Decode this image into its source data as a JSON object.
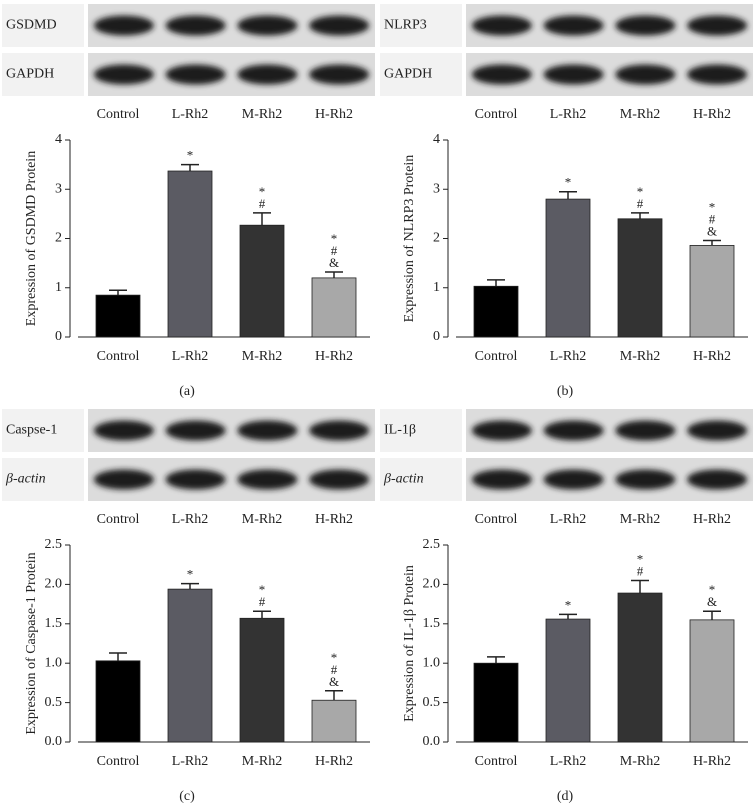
{
  "chart_data": [
    {
      "type": "bar",
      "panel": "(a)",
      "blot_labels": [
        "GSDMD",
        "GAPDH"
      ],
      "ylabel": "Expression of GSDMD Protein",
      "categories": [
        "Control",
        "L-Rh2",
        "M-Rh2",
        "H-Rh2"
      ],
      "values": [
        0.85,
        3.37,
        2.27,
        1.2
      ],
      "errors": [
        0.1,
        0.13,
        0.25,
        0.12
      ],
      "marks": [
        [],
        [
          "*"
        ],
        [
          "*",
          "#"
        ],
        [
          "*",
          "#",
          "&"
        ]
      ],
      "colors": [
        "#000000",
        "#5b5b63",
        "#333333",
        "#a8a8a8"
      ],
      "ylim": [
        0,
        4
      ],
      "yticks": [
        0,
        1,
        2,
        3,
        4
      ]
    },
    {
      "type": "bar",
      "panel": "(b)",
      "blot_labels": [
        "NLRP3",
        "GAPDH"
      ],
      "ylabel": "Expression of NLRP3 Protein",
      "categories": [
        "Control",
        "L-Rh2",
        "M-Rh2",
        "H-Rh2"
      ],
      "values": [
        1.03,
        2.8,
        2.4,
        1.86
      ],
      "errors": [
        0.13,
        0.15,
        0.12,
        0.1
      ],
      "marks": [
        [],
        [
          "*"
        ],
        [
          "*",
          "#"
        ],
        [
          "*",
          "#",
          "&"
        ]
      ],
      "colors": [
        "#000000",
        "#5b5b63",
        "#333333",
        "#a8a8a8"
      ],
      "ylim": [
        0,
        4
      ],
      "yticks": [
        0,
        1,
        2,
        3,
        4
      ]
    },
    {
      "type": "bar",
      "panel": "(c)",
      "blot_labels": [
        "Caspse-1",
        "β-actin"
      ],
      "ylabel": "Expression of Caspase-1 Protein",
      "categories": [
        "Control",
        "L-Rh2",
        "M-Rh2",
        "H-Rh2"
      ],
      "values": [
        1.03,
        1.94,
        1.57,
        0.53
      ],
      "errors": [
        0.1,
        0.07,
        0.09,
        0.12
      ],
      "marks": [
        [],
        [
          "*"
        ],
        [
          "*",
          "#"
        ],
        [
          "*",
          "#",
          "&"
        ]
      ],
      "colors": [
        "#000000",
        "#5b5b63",
        "#333333",
        "#a8a8a8"
      ],
      "ylim": [
        0,
        2.5
      ],
      "yticks": [
        {
          "value": 0,
          "label": "0.0"
        },
        {
          "value": 0.5,
          "label": "0.5"
        },
        {
          "value": 1,
          "label": "1.0"
        },
        {
          "value": 1.5,
          "label": "1.5"
        },
        {
          "value": 2,
          "label": "2.0"
        },
        {
          "value": 2.5,
          "label": "2.5"
        }
      ]
    },
    {
      "type": "bar",
      "panel": "(d)",
      "blot_labels": [
        "IL-1β",
        "β-actin"
      ],
      "ylabel": "Expression of IL-1β Protein",
      "categories": [
        "Control",
        "L-Rh2",
        "M-Rh2",
        "H-Rh2"
      ],
      "values": [
        1.0,
        1.56,
        1.89,
        1.55
      ],
      "errors": [
        0.08,
        0.06,
        0.16,
        0.11
      ],
      "marks": [
        [],
        [
          "*"
        ],
        [
          "*",
          "#"
        ],
        [
          "*",
          "&"
        ]
      ],
      "colors": [
        "#000000",
        "#5b5b63",
        "#333333",
        "#a8a8a8"
      ],
      "ylim": [
        0,
        2.5
      ],
      "yticks": [
        {
          "value": 0,
          "label": "0.0"
        },
        {
          "value": 0.5,
          "label": "0.5"
        },
        {
          "value": 1,
          "label": "1.0"
        },
        {
          "value": 1.5,
          "label": "1.5"
        },
        {
          "value": 2,
          "label": "2.0"
        },
        {
          "value": 2.5,
          "label": "2.5"
        }
      ]
    }
  ]
}
